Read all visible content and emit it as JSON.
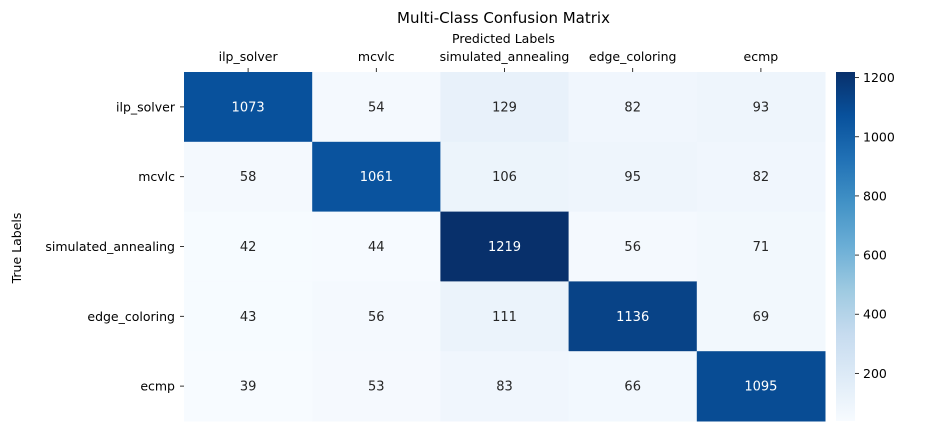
{
  "chart_data": {
    "type": "heatmap",
    "title": "Multi-Class Confusion Matrix",
    "xlabel": "Predicted Labels",
    "ylabel": "True Labels",
    "x_categories": [
      "ilp_solver",
      "mcvlc",
      "simulated_annealing",
      "edge_coloring",
      "ecmp"
    ],
    "y_categories": [
      "ilp_solver",
      "mcvlc",
      "simulated_annealing",
      "edge_coloring",
      "ecmp"
    ],
    "values": [
      [
        1073,
        54,
        129,
        82,
        93
      ],
      [
        58,
        1061,
        106,
        95,
        82
      ],
      [
        42,
        44,
        1219,
        56,
        71
      ],
      [
        43,
        56,
        111,
        1136,
        69
      ],
      [
        39,
        53,
        83,
        66,
        1095
      ]
    ],
    "colormap": "Blues",
    "color_range": [
      39,
      1219
    ],
    "colorbar_ticks": [
      200,
      400,
      600,
      800,
      1000,
      1200
    ],
    "x_axis_position": "top",
    "colorbar_position": "right"
  }
}
